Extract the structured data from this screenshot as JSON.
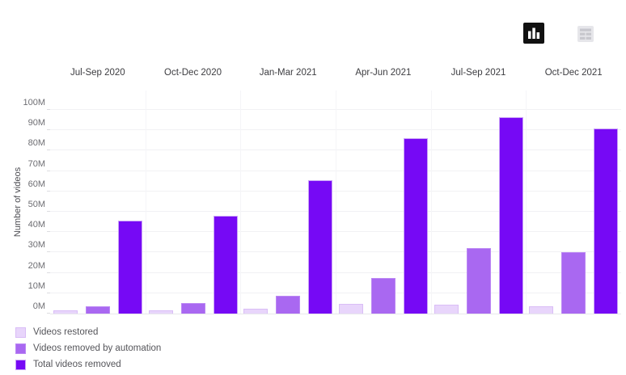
{
  "toolbar": {
    "chart_view_icon": "bar-chart-icon",
    "table_view_icon": "table-icon",
    "chart_view_active_color": "#111111",
    "table_view_color": "#cfcfd4"
  },
  "chart_data": {
    "type": "bar",
    "title": "",
    "categories": [
      "Jul-Sep 2020",
      "Oct-Dec 2020",
      "Jan-Mar 2021",
      "Apr-Jun 2021",
      "Jul-Sep 2021",
      "Oct-Dec 2021"
    ],
    "series": [
      {
        "name": "Videos restored",
        "color": "#e8d5fb",
        "border_color": "#d9bdf6",
        "values": [
          1.5,
          1.7,
          2.5,
          4.6,
          4.2,
          3.6
        ]
      },
      {
        "name": "Videos removed by automation",
        "color": "#a968f1",
        "border_color": "#bb87f4",
        "values": [
          3.7,
          5.3,
          8.7,
          17.5,
          32,
          30
        ]
      },
      {
        "name": "Total videos removed",
        "color": "#7609f5",
        "border_color": "#c9a2f7",
        "values": [
          45.5,
          48,
          65.5,
          86,
          96.5,
          91
        ]
      }
    ],
    "xlabel": "",
    "ylabel": "Number of videos",
    "unit": "M",
    "ylim": [
      0,
      100
    ],
    "y_tick_step": 10,
    "y_tick_labels": [
      "0M",
      "10M",
      "20M",
      "30M",
      "40M",
      "50M",
      "60M",
      "70M",
      "80M",
      "90M",
      "100M"
    ],
    "grid": true,
    "legend_position": "bottom-left"
  }
}
